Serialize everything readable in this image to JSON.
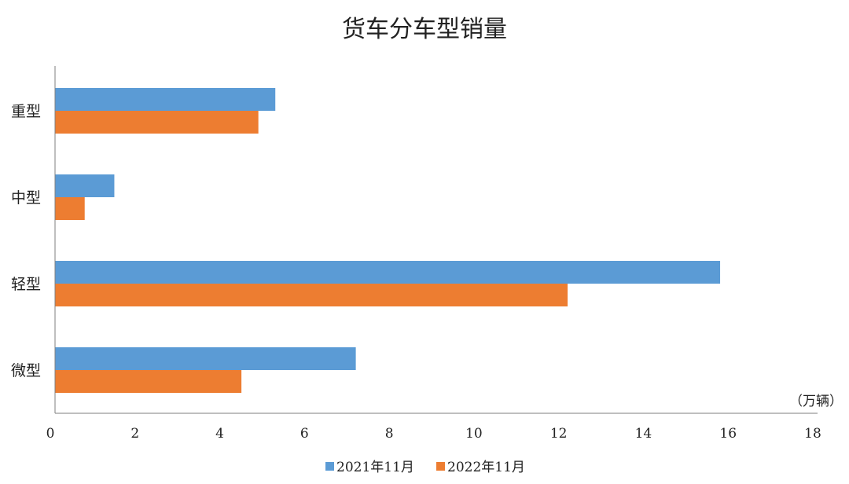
{
  "chart_data": {
    "type": "bar",
    "orientation": "horizontal",
    "title": "货车分车型销量",
    "unit_label": "（万辆）",
    "categories": [
      "重型",
      "中型",
      "轻型",
      "微型"
    ],
    "series": [
      {
        "name": "2021年11月",
        "color": "#5B9BD5",
        "values": [
          5.2,
          1.4,
          15.7,
          7.1
        ]
      },
      {
        "name": "2022年11月",
        "color": "#ED7D31",
        "values": [
          4.8,
          0.7,
          12.1,
          4.4
        ]
      }
    ],
    "xlim": [
      0,
      18
    ],
    "xticks": [
      0,
      2,
      4,
      6,
      8,
      10,
      12,
      14,
      16,
      18
    ],
    "grid": false,
    "legend_position": "bottom"
  }
}
